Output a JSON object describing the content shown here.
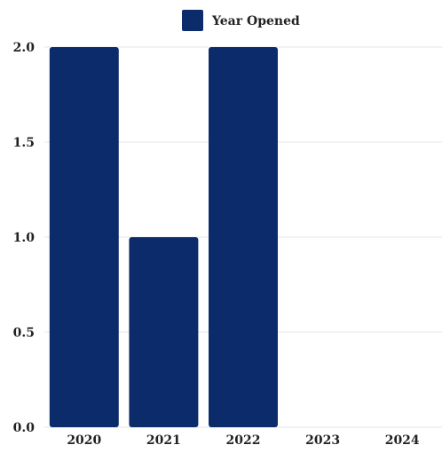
{
  "chart_data": {
    "type": "bar",
    "categories": [
      "2020",
      "2021",
      "2022",
      "2023",
      "2024"
    ],
    "series": [
      {
        "name": "Year Opened",
        "values": [
          2,
          1,
          2,
          0,
          0
        ]
      }
    ],
    "ylim": [
      0,
      2
    ],
    "yticks": [
      "0.0",
      "0.5",
      "1.0",
      "1.5",
      "2.0"
    ],
    "title": "",
    "xlabel": "",
    "ylabel": "",
    "legend_position": "top-center",
    "grid": true,
    "colors": {
      "bar": "#0b2b6b",
      "grid": "#e6e6e6"
    }
  }
}
